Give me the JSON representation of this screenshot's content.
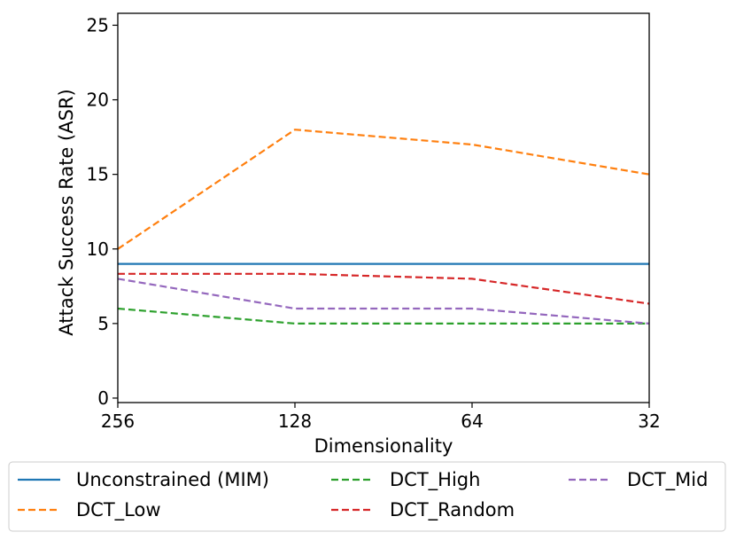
{
  "chart_data": {
    "type": "line",
    "title": "",
    "xlabel": "Dimensionality",
    "ylabel": "Attack Success Rate (ASR)",
    "x_tick_labels": [
      "256",
      "128",
      "64",
      "32"
    ],
    "y_ticks": [
      0,
      5,
      10,
      15,
      20,
      25
    ],
    "ylim": [
      -0.3,
      25.8
    ],
    "grid": false,
    "legend_position": "bottom-center",
    "legend_columns": 3,
    "series": [
      {
        "name": "Unconstrained (MIM)",
        "color": "#1f77b4",
        "dash": "solid",
        "values": [
          9,
          9,
          9,
          9
        ]
      },
      {
        "name": "DCT_Low",
        "color": "#ff7f0e",
        "dash": "dashed",
        "values": [
          10,
          18,
          17,
          15
        ]
      },
      {
        "name": "DCT_High",
        "color": "#2ca02c",
        "dash": "dashed",
        "values": [
          6,
          5,
          5,
          5
        ]
      },
      {
        "name": "DCT_Random",
        "color": "#d62728",
        "dash": "dashed",
        "values": [
          8.33,
          8.33,
          8,
          6.33
        ]
      },
      {
        "name": "DCT_Mid",
        "color": "#9467bd",
        "dash": "dashed",
        "values": [
          8,
          6,
          6,
          5
        ]
      }
    ]
  }
}
